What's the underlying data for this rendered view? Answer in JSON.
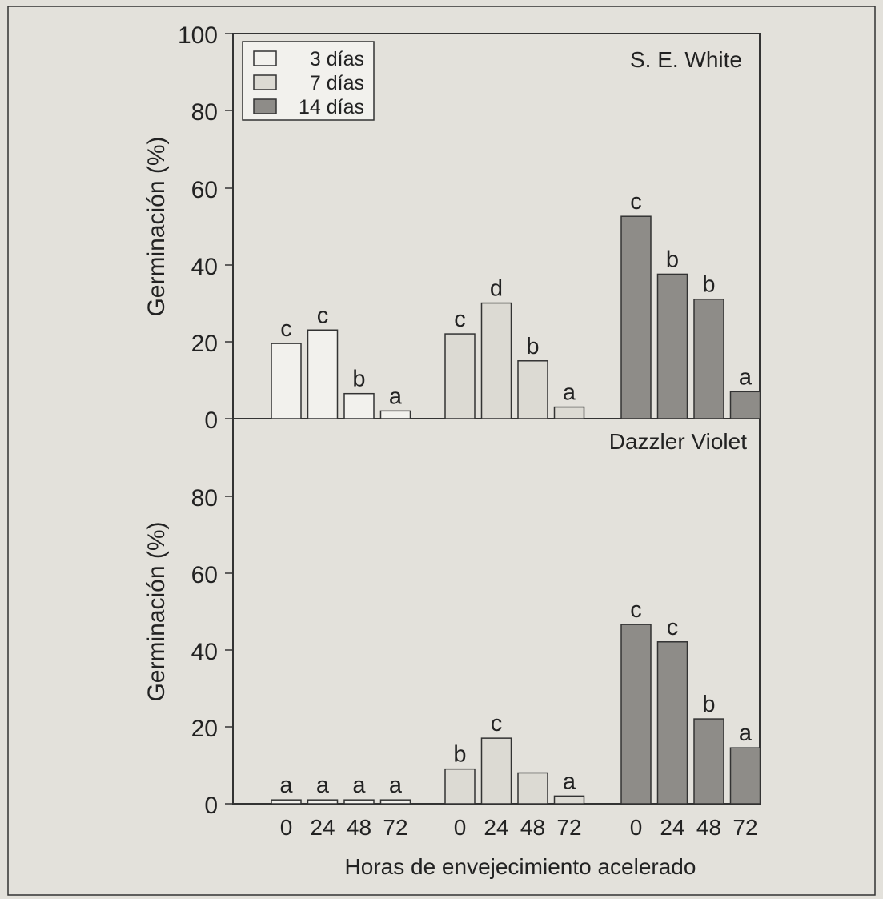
{
  "colors": {
    "background": "#e3e1db",
    "frame": "#333333",
    "bar_3dias": "#f2f1ed",
    "bar_7dias": "#dcdad3",
    "bar_14dias": "#8e8c88",
    "text": "#222222"
  },
  "chart_data": [
    {
      "type": "bar",
      "panel_label": "S. E. White",
      "ylabel": "Germinación (%)",
      "ylim": [
        0,
        100
      ],
      "yticks": [
        "100",
        "80",
        "60",
        "40",
        "20",
        "0"
      ],
      "legend": {
        "placement": "top-left",
        "entries": [
          "3 días",
          "7 días",
          "14 días"
        ]
      },
      "groups": [
        "3 días",
        "7 días",
        "14 días"
      ],
      "categories": [
        "0",
        "24",
        "48",
        "72"
      ],
      "series": [
        {
          "name": "3 días",
          "values": [
            19.5,
            23,
            6.5,
            2
          ],
          "letters": [
            "c",
            "c",
            "b",
            "a"
          ]
        },
        {
          "name": "7 días",
          "values": [
            22,
            30,
            15,
            3
          ],
          "letters": [
            "c",
            "d",
            "b",
            "a"
          ]
        },
        {
          "name": "14 días",
          "values": [
            52.5,
            37.5,
            31,
            7
          ],
          "letters": [
            "c",
            "b",
            "b",
            "a"
          ]
        }
      ]
    },
    {
      "type": "bar",
      "panel_label": "Dazzler Violet",
      "ylabel": "Germinación (%)",
      "xlabel": "Horas de envejecimiento acelerado",
      "ylim": [
        0,
        100
      ],
      "yticks": [
        "80",
        "60",
        "40",
        "20",
        "0"
      ],
      "groups": [
        "3 días",
        "7 días",
        "14 días"
      ],
      "categories": [
        "0",
        "24",
        "48",
        "72"
      ],
      "series": [
        {
          "name": "3 días",
          "values": [
            1,
            1,
            1,
            1
          ],
          "letters": [
            "a",
            "a",
            "a",
            "a"
          ]
        },
        {
          "name": "7 días",
          "values": [
            9,
            17,
            8,
            2
          ],
          "letters": [
            "b",
            "c",
            "",
            "a"
          ]
        },
        {
          "name": "14 días",
          "values": [
            46.5,
            42,
            22,
            14.5
          ],
          "letters": [
            "c",
            "c",
            "b",
            "a"
          ]
        }
      ]
    }
  ]
}
